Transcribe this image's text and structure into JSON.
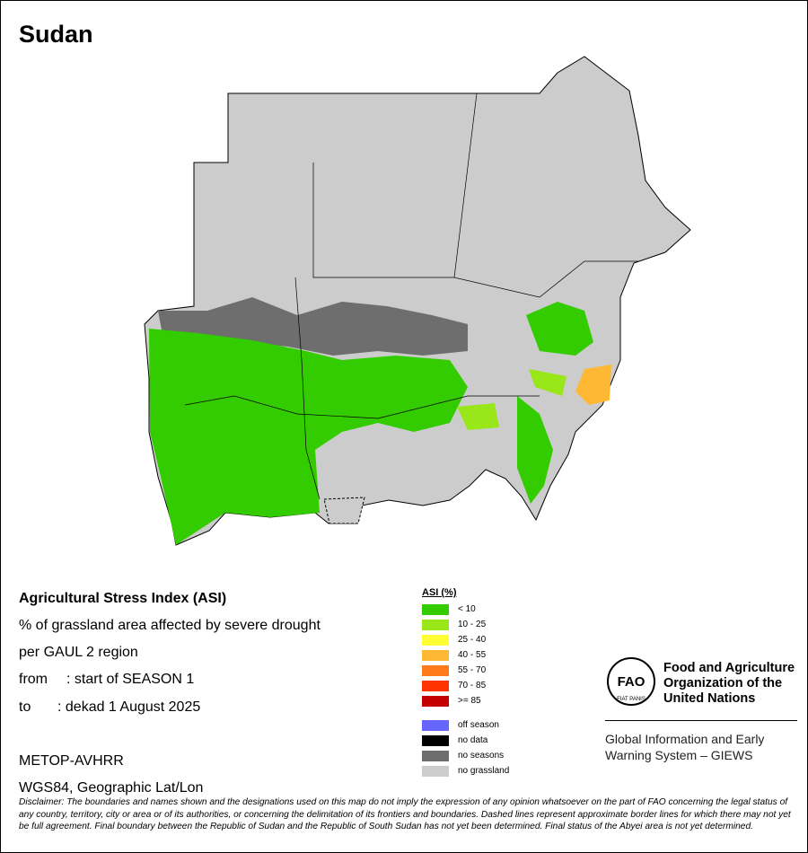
{
  "title": "Sudan",
  "info": {
    "heading": "Agricultural Stress Index (ASI)",
    "lines": [
      "% of grassland area affected by severe drought",
      "per GAUL 2 region"
    ],
    "from_label": "from",
    "from_value": ": start of SEASON 1",
    "to_label": "to",
    "to_value": ": dekad 1 August 2025",
    "sensor": "METOP-AVHRR",
    "projection": "WGS84, Geographic Lat/Lon"
  },
  "legend": {
    "title": "ASI (%)",
    "classes": [
      {
        "label": "< 10",
        "color": "#33cc00"
      },
      {
        "label": "10 - 25",
        "color": "#99e619"
      },
      {
        "label": "25 - 40",
        "color": "#ffff33"
      },
      {
        "label": "40 - 55",
        "color": "#ffb833"
      },
      {
        "label": "55 - 70",
        "color": "#ff7a1a"
      },
      {
        "label": "70 - 85",
        "color": "#ff3300"
      },
      {
        "label": ">= 85",
        "color": "#c40000"
      }
    ],
    "other": [
      {
        "label": "off season",
        "color": "#6666ff"
      },
      {
        "label": "no data",
        "color": "#000000"
      },
      {
        "label": "no seasons",
        "color": "#6e6e6e"
      },
      {
        "label": "no grassland",
        "color": "#cccccc"
      }
    ]
  },
  "logo": {
    "letters": "FAO",
    "motto": "FIAT PANIS",
    "org": [
      "Food and Agriculture",
      "Organization of the",
      "United Nations"
    ],
    "program": [
      "Global Information and Early",
      "Warning System – GIEWS"
    ]
  },
  "disclaimer": "Disclaimer: The boundaries and names shown and the designations used on this map do not imply the expression of any opinion whatsoever on the part of FAO concerning the legal status of any country, territory, city or area or of its authorities, or concerning the delimitation of its frontiers and boundaries. Dashed lines represent approximate border lines for which there may not yet be full agreement.  Final boundary between the Republic of Sudan and the Republic of South Sudan has not yet been determined. Final status of the Abyei area is not yet determined."
}
